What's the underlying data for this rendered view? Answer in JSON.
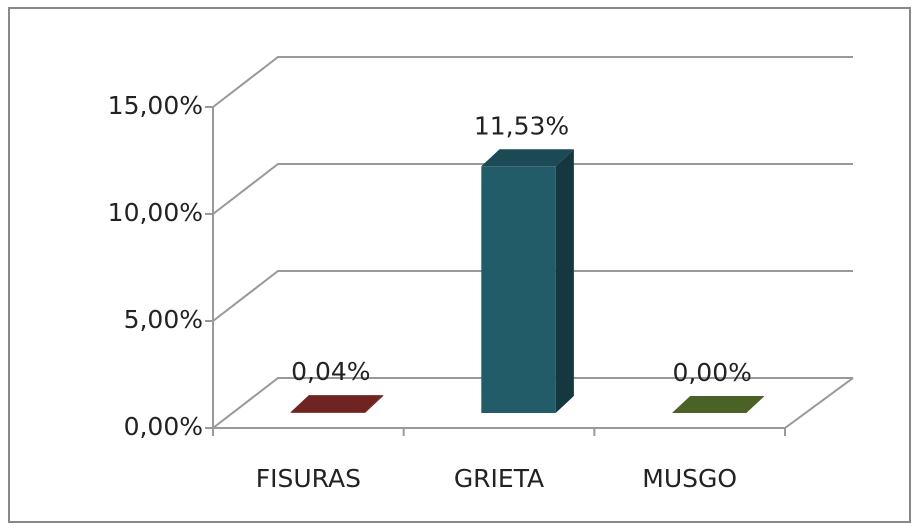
{
  "chart_data": {
    "type": "bar3d",
    "categories": [
      "FISURAS",
      "GRIETA",
      "MUSGO"
    ],
    "values": [
      0.04,
      11.53,
      0.0
    ],
    "value_labels": [
      "0,04%",
      "11,53%",
      "0,00%"
    ],
    "colors": [
      "#8c2d2b",
      "#235c69",
      "#5c7b2f"
    ],
    "ylim": [
      0,
      15
    ],
    "yticks": [
      {
        "value": 0,
        "label": "0,00%"
      },
      {
        "value": 5,
        "label": "5,00%"
      },
      {
        "value": 10,
        "label": "10,00%"
      },
      {
        "value": 15,
        "label": "15,00%"
      }
    ],
    "grid": true
  }
}
